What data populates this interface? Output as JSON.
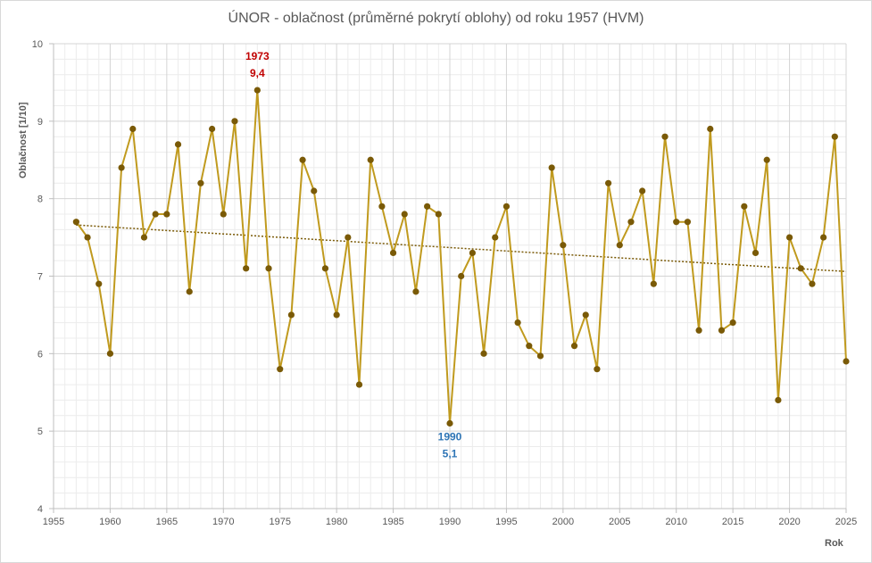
{
  "chart_data": {
    "type": "line",
    "title": "ÚNOR - oblačnost (průměrné pokrytí oblohy) od roku 1957 (HVM)",
    "xlabel": "Rok",
    "ylabel": "Oblačnost  [1/10]",
    "xlim": [
      1955,
      2025
    ],
    "ylim": [
      4,
      10
    ],
    "xticks": [
      1955,
      1960,
      1965,
      1970,
      1975,
      1980,
      1985,
      1990,
      1995,
      2000,
      2005,
      2010,
      2015,
      2020,
      2025
    ],
    "yticks": [
      4,
      5,
      6,
      7,
      8,
      9,
      10
    ],
    "grid": true,
    "minor_grid": true,
    "series": [
      {
        "color": "#c09a1e",
        "marker_color": "#7a5a07",
        "x": [
          1957,
          1958,
          1959,
          1960,
          1961,
          1962,
          1963,
          1964,
          1965,
          1966,
          1967,
          1968,
          1969,
          1970,
          1971,
          1972,
          1973,
          1974,
          1975,
          1976,
          1977,
          1978,
          1979,
          1980,
          1981,
          1982,
          1983,
          1984,
          1985,
          1986,
          1987,
          1988,
          1989,
          1990,
          1991,
          1992,
          1993,
          1994,
          1995,
          1996,
          1997,
          1998,
          1999,
          2000,
          2001,
          2002,
          2003,
          2004,
          2005,
          2006,
          2007,
          2008,
          2009,
          2010,
          2011,
          2012,
          2013,
          2014,
          2015,
          2016,
          2017,
          2018,
          2019,
          2020,
          2021,
          2022,
          2023,
          2024,
          2025
        ],
        "y": [
          7.7,
          7.5,
          6.9,
          6.0,
          8.4,
          8.9,
          7.5,
          7.8,
          7.8,
          8.7,
          6.8,
          8.2,
          8.9,
          7.8,
          9.0,
          7.1,
          9.4,
          7.1,
          5.8,
          6.5,
          8.5,
          8.1,
          7.1,
          6.5,
          7.5,
          5.6,
          8.5,
          7.9,
          7.3,
          7.8,
          6.8,
          7.9,
          7.8,
          5.1,
          7.0,
          7.3,
          6.0,
          7.5,
          7.9,
          6.4,
          6.1,
          5.97,
          8.4,
          7.4,
          6.1,
          6.5,
          5.8,
          8.2,
          7.4,
          7.7,
          8.1,
          6.9,
          8.8,
          7.7,
          7.7,
          6.3,
          8.9,
          6.3,
          6.4,
          7.9,
          7.3,
          8.5,
          5.4,
          7.5,
          7.1,
          6.9,
          7.5,
          8.8,
          5.9
        ]
      }
    ],
    "trendline": {
      "type": "linear",
      "color": "#7a5a07",
      "style": "dotted",
      "from": [
        1957,
        7.66
      ],
      "to": [
        2025,
        7.06
      ]
    },
    "annotations": [
      {
        "year": "1973",
        "value": "9,4",
        "color": "#c00000"
      },
      {
        "year": "1990",
        "value": "5,1",
        "color": "#2e75b6"
      }
    ]
  }
}
